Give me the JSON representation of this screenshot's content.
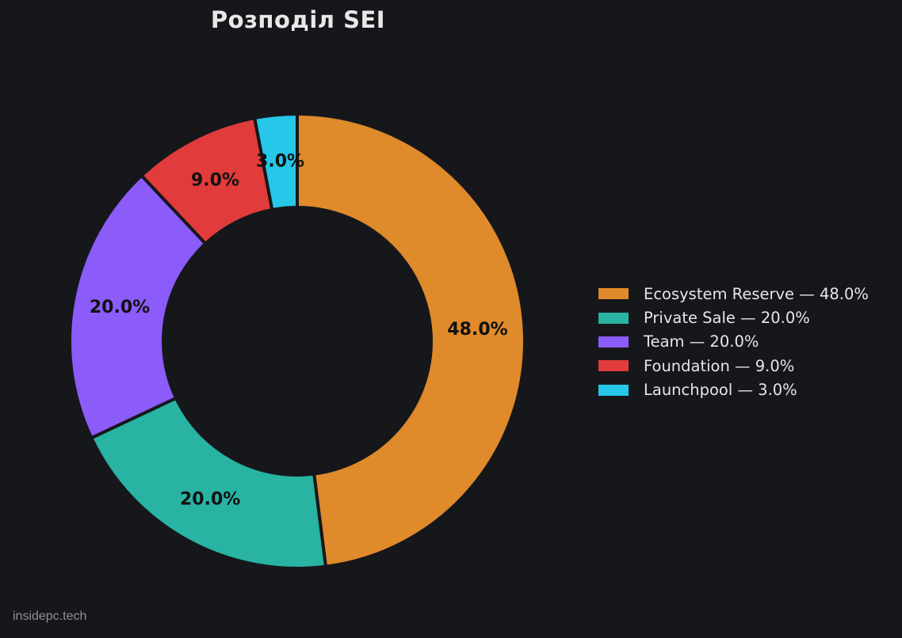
{
  "chart_data": {
    "type": "pie",
    "variant": "donut",
    "title": "Розподіл SEI",
    "start_angle_deg": 90,
    "direction": "clockwise",
    "legend_position": "right",
    "slices": [
      {
        "name": "Ecosystem Reserve",
        "value": 48.0,
        "label": "48.0%",
        "legend": "Ecosystem Reserve — 48.0%",
        "color": "#df8a2b"
      },
      {
        "name": "Private Sale",
        "value": 20.0,
        "label": "20.0%",
        "legend": "Private Sale — 20.0%",
        "color": "#28b3a3"
      },
      {
        "name": "Team",
        "value": 20.0,
        "label": "20.0%",
        "legend": "Team — 20.0%",
        "color": "#8b5cf9"
      },
      {
        "name": "Foundation",
        "value": 9.0,
        "label": "9.0%",
        "legend": "Foundation — 9.0%",
        "color": "#e13b3b"
      },
      {
        "name": "Launchpool",
        "value": 3.0,
        "label": "3.0%",
        "legend": "Launchpool — 3.0%",
        "color": "#26c7e9"
      }
    ]
  },
  "watermark": "insidepc.tech"
}
